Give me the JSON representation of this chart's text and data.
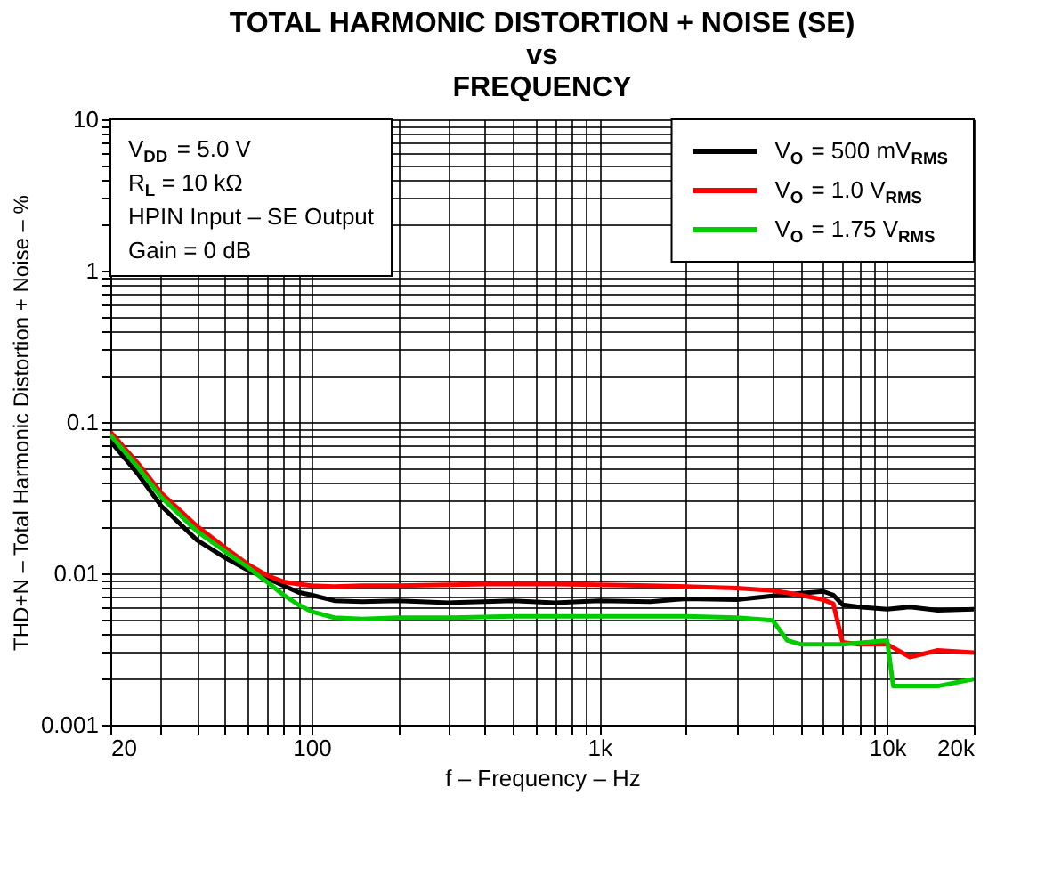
{
  "chart_data": {
    "type": "line",
    "title": [
      "TOTAL HARMONIC DISTORTION + NOISE (SE)",
      "vs",
      "FREQUENCY"
    ],
    "xlabel": "f – Frequency – Hz",
    "ylabel": "THD+N – Total Harmonic Distortion + Noise – %",
    "log": "xy",
    "grid": true,
    "legend": "top right",
    "line_style": "solid",
    "xlim": [
      20,
      20000
    ],
    "xticks": [
      20,
      {
        "value": 30,
        "label": null
      },
      {
        "value": 40,
        "label": null
      },
      {
        "value": 50,
        "label": null
      },
      {
        "value": 60,
        "label": null
      },
      {
        "value": 70,
        "label": null
      },
      {
        "value": 80,
        "label": null
      },
      {
        "value": 90,
        "label": null
      },
      100,
      {
        "value": 200,
        "label": null
      },
      {
        "value": 300,
        "label": null
      },
      {
        "value": 400,
        "label": null
      },
      {
        "value": 500,
        "label": null
      },
      {
        "value": 600,
        "label": null
      },
      {
        "value": 700,
        "label": null
      },
      {
        "value": 800,
        "label": null
      },
      {
        "value": 900,
        "label": null
      },
      {
        "value": 1000,
        "label": "1k"
      },
      {
        "value": 2000,
        "label": null
      },
      {
        "value": 3000,
        "label": null
      },
      {
        "value": 4000,
        "label": null
      },
      {
        "value": 5000,
        "label": null
      },
      {
        "value": 6000,
        "label": null
      },
      {
        "value": 7000,
        "label": null
      },
      {
        "value": 8000,
        "label": null
      },
      {
        "value": 9000,
        "label": null
      },
      {
        "value": 10000,
        "label": "10k"
      },
      {
        "value": 20000,
        "label": "20k"
      }
    ],
    "ylim": [
      0.001,
      10
    ],
    "yticks": [
      0.001,
      {
        "value": 0.002,
        "label": null
      },
      {
        "value": 0.003,
        "label": null
      },
      {
        "value": 0.004,
        "label": null
      },
      {
        "value": 0.005,
        "label": null
      },
      {
        "value": 0.006,
        "label": null
      },
      {
        "value": 0.007,
        "label": null
      },
      {
        "value": 0.008,
        "label": null
      },
      {
        "value": 0.009,
        "label": null
      },
      0.01,
      {
        "value": 0.02,
        "label": null
      },
      {
        "value": 0.03,
        "label": null
      },
      {
        "value": 0.04,
        "label": null
      },
      {
        "value": 0.05,
        "label": null
      },
      {
        "value": 0.06,
        "label": null
      },
      {
        "value": 0.07,
        "label": null
      },
      {
        "value": 0.08,
        "label": null
      },
      {
        "value": 0.09,
        "label": null
      },
      0.1,
      {
        "value": 0.2,
        "label": null
      },
      {
        "value": 0.3,
        "label": null
      },
      {
        "value": 0.4,
        "label": null
      },
      {
        "value": 0.5,
        "label": null
      },
      {
        "value": 0.6,
        "label": null
      },
      {
        "value": 0.7,
        "label": null
      },
      {
        "value": 0.8,
        "label": null
      },
      {
        "value": 0.9,
        "label": null
      },
      1,
      {
        "value": 2,
        "label": null
      },
      {
        "value": 3,
        "label": null
      },
      {
        "value": 4,
        "label": null
      },
      {
        "value": 5,
        "label": null
      },
      {
        "value": 6,
        "label": null
      },
      {
        "value": 7,
        "label": null
      },
      {
        "value": 8,
        "label": null
      },
      {
        "value": 9,
        "label": null
      },
      10
    ],
    "annotations": [
      "V$_{DD}$ = 5.0 V",
      "R$_{L}$ = 10 kΩ",
      "HPIN Input – SE Output",
      "Gain = 0 dB"
    ],
    "series": [
      {
        "name": "V$_{O}$ = 500 mV$_{RMS}$",
        "color": "#000000",
        "x": [
          20,
          25,
          30,
          40,
          50,
          60,
          70,
          80,
          90,
          100,
          120,
          150,
          200,
          300,
          400,
          500,
          700,
          1000,
          1500,
          2000,
          3000,
          4000,
          5000,
          6000,
          6500,
          7000,
          8000,
          10000,
          12000,
          15000,
          20000
        ],
        "values": [
          0.075,
          0.045,
          0.028,
          0.0166,
          0.0127,
          0.0105,
          0.0093,
          0.0083,
          0.0075,
          0.0072,
          0.0066,
          0.0065,
          0.0066,
          0.0064,
          0.0065,
          0.0066,
          0.0064,
          0.0066,
          0.0065,
          0.0068,
          0.0067,
          0.0071,
          0.0074,
          0.0076,
          0.0072,
          0.0062,
          0.006,
          0.0058,
          0.006,
          0.0057,
          0.0058
        ]
      },
      {
        "name": "V$_{O}$ = 1.0 V$_{RMS}$",
        "color": "#ff0000",
        "x": [
          20,
          25,
          30,
          40,
          50,
          60,
          70,
          80,
          90,
          100,
          120,
          150,
          200,
          300,
          400,
          500,
          700,
          1000,
          1500,
          2000,
          3000,
          4000,
          5000,
          6000,
          6500,
          7000,
          8000,
          10000,
          12000,
          15000,
          20000
        ],
        "values": [
          0.086,
          0.053,
          0.034,
          0.0205,
          0.0148,
          0.0115,
          0.0097,
          0.0088,
          0.0085,
          0.0083,
          0.0082,
          0.0083,
          0.0083,
          0.0084,
          0.0085,
          0.0085,
          0.0085,
          0.0084,
          0.0083,
          0.0082,
          0.008,
          0.0077,
          0.0072,
          0.0067,
          0.0063,
          0.0035,
          0.0034,
          0.0034,
          0.0028,
          0.0031,
          0.003
        ]
      },
      {
        "name": "V$_{O}$ = 1.75 V$_{RMS}$",
        "color": "#00cc00",
        "x": [
          20,
          25,
          30,
          40,
          50,
          60,
          70,
          80,
          90,
          100,
          120,
          150,
          200,
          300,
          500,
          1000,
          2000,
          3000,
          4000,
          4500,
          5000,
          7000,
          10000,
          10500,
          12000,
          15000,
          20000
        ],
        "values": [
          0.082,
          0.05,
          0.032,
          0.019,
          0.014,
          0.011,
          0.0088,
          0.0072,
          0.0062,
          0.0056,
          0.0051,
          0.005,
          0.0051,
          0.0051,
          0.0052,
          0.0052,
          0.0052,
          0.0051,
          0.0049,
          0.0036,
          0.0034,
          0.0034,
          0.0036,
          0.0018,
          0.0018,
          0.0018,
          0.002
        ]
      }
    ]
  }
}
